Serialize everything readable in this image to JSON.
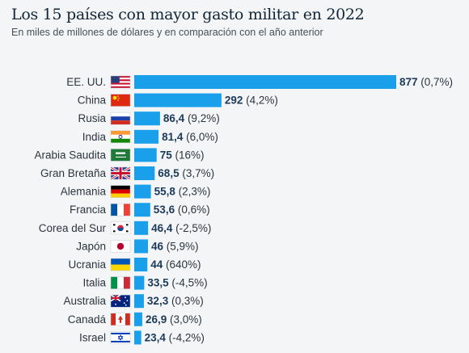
{
  "header": {
    "title": "Los 15 países con mayor gasto militar en 2022",
    "subtitle": "En miles de millones de dólares y en comparación con el año anterior"
  },
  "chart_data": {
    "type": "bar",
    "orientation": "horizontal",
    "bar_color": "#1aa0ea",
    "categories": [
      "EE. UU.",
      "China",
      "Rusia",
      "India",
      "Arabia Saudita",
      "Gran Bretaña",
      "Alemania",
      "Francia",
      "Corea del Sur",
      "Japón",
      "Ucrania",
      "Italia",
      "Australia",
      "Canadá",
      "Israel"
    ],
    "values": [
      877,
      292,
      86.4,
      81.4,
      75,
      68.5,
      55.8,
      53.6,
      46.4,
      46,
      44,
      33.5,
      32.3,
      26.9,
      23.4
    ],
    "value_labels": [
      "877",
      "292",
      "86,4",
      "81,4",
      "75",
      "68,5",
      "55,8",
      "53,6",
      "46,4",
      "46",
      "44",
      "33,5",
      "32,3",
      "26,9",
      "23,4"
    ],
    "change_labels": [
      "(0,7%)",
      "(4,2%)",
      "(9,2%)",
      "(6,0%)",
      "(16%)",
      "(3,7%)",
      "(2,3%)",
      "(0,6%)",
      "(-2,5%)",
      "(5,9%)",
      "(640%)",
      "(-4,5%)",
      "(0,3%)",
      "(3,0%)",
      "(-4,2%)"
    ],
    "flag_icons": [
      "flag-us-icon",
      "flag-cn-icon",
      "flag-ru-icon",
      "flag-in-icon",
      "flag-sa-icon",
      "flag-gb-icon",
      "flag-de-icon",
      "flag-fr-icon",
      "flag-kr-icon",
      "flag-jp-icon",
      "flag-ua-icon",
      "flag-it-icon",
      "flag-au-icon",
      "flag-ca-icon",
      "flag-il-icon"
    ],
    "xlim": [
      0,
      877
    ],
    "grid": false,
    "legend": "none"
  }
}
